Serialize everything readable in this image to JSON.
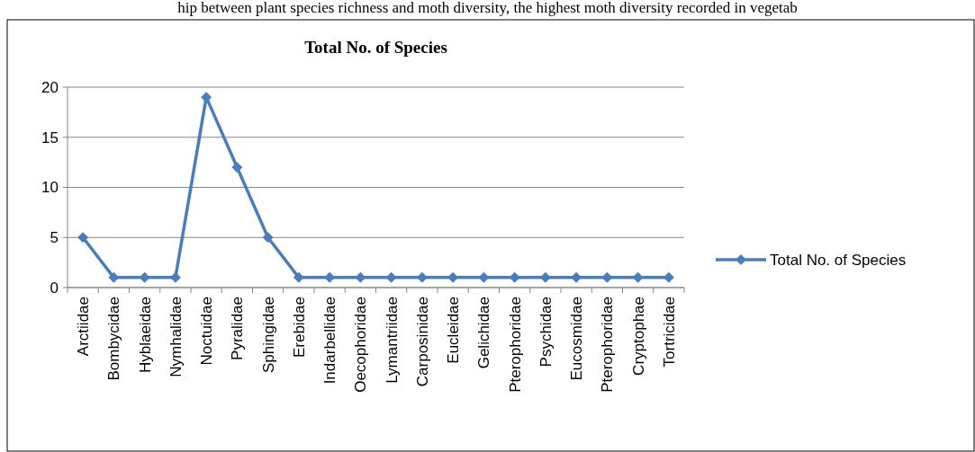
{
  "chart_data": {
    "type": "line",
    "title": "Total No. of Species",
    "annotations": [
      "hip between plant species richness and moth diversity, the highest moth diversity recorded in vegetab"
    ],
    "categories": [
      "Arctiidae",
      "Bombycidae",
      "Hyblaeidae",
      "Nymhalidae",
      "Noctuidae",
      "Pyralidae",
      "Sphingidae",
      "Erebidae",
      "Indarbellidae",
      "Oecophoridae",
      "Lymantriidae",
      "Carposinidae",
      "Eucleidae",
      "Gelichidae",
      "Pterophoridae",
      "Psychidae",
      "Eucosmidae",
      "Pterophoridae",
      "Cryptophae",
      "Tortricidae"
    ],
    "series": [
      {
        "name": "Total No. of Species",
        "color": "#4a7ebb",
        "values": [
          5,
          1,
          1,
          1,
          19,
          12,
          5,
          1,
          1,
          1,
          1,
          1,
          1,
          1,
          1,
          1,
          1,
          1,
          1,
          1
        ]
      }
    ],
    "ylim": [
      0,
      20
    ],
    "yticks": [
      0,
      5,
      10,
      15,
      20
    ],
    "grid": "y",
    "legend": "right",
    "marker": "diamond",
    "line_style": "solid"
  }
}
